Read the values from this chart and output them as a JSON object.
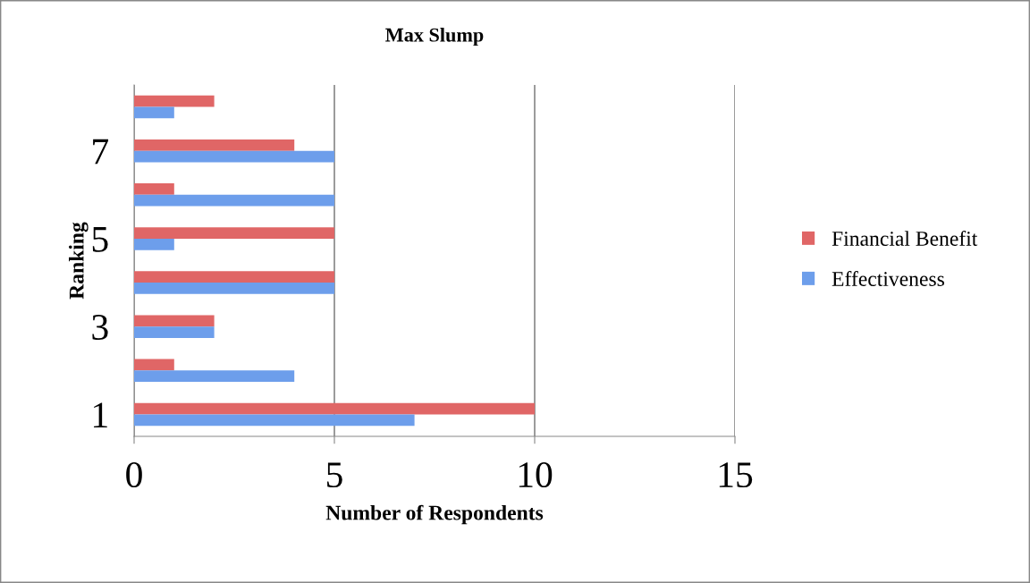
{
  "chart_data": {
    "type": "bar",
    "orientation": "horizontal",
    "title": "Max Slump",
    "xlabel": "Number of Respondents",
    "ylabel": "Ranking",
    "categories": [
      null,
      "7",
      null,
      "5",
      null,
      "3",
      null,
      "1"
    ],
    "series": [
      {
        "name": "Financial Benefit",
        "color": "#e06666",
        "values": [
          2,
          4,
          1,
          5,
          5,
          2,
          1,
          10
        ]
      },
      {
        "name": "Effectiveness",
        "color": "#6d9eeb",
        "values": [
          1,
          5,
          5,
          1,
          5,
          2,
          4,
          7
        ]
      }
    ],
    "xlim": [
      0,
      15
    ],
    "xticks": [
      0,
      5,
      10,
      15
    ],
    "grid": "x",
    "legend": "right"
  }
}
